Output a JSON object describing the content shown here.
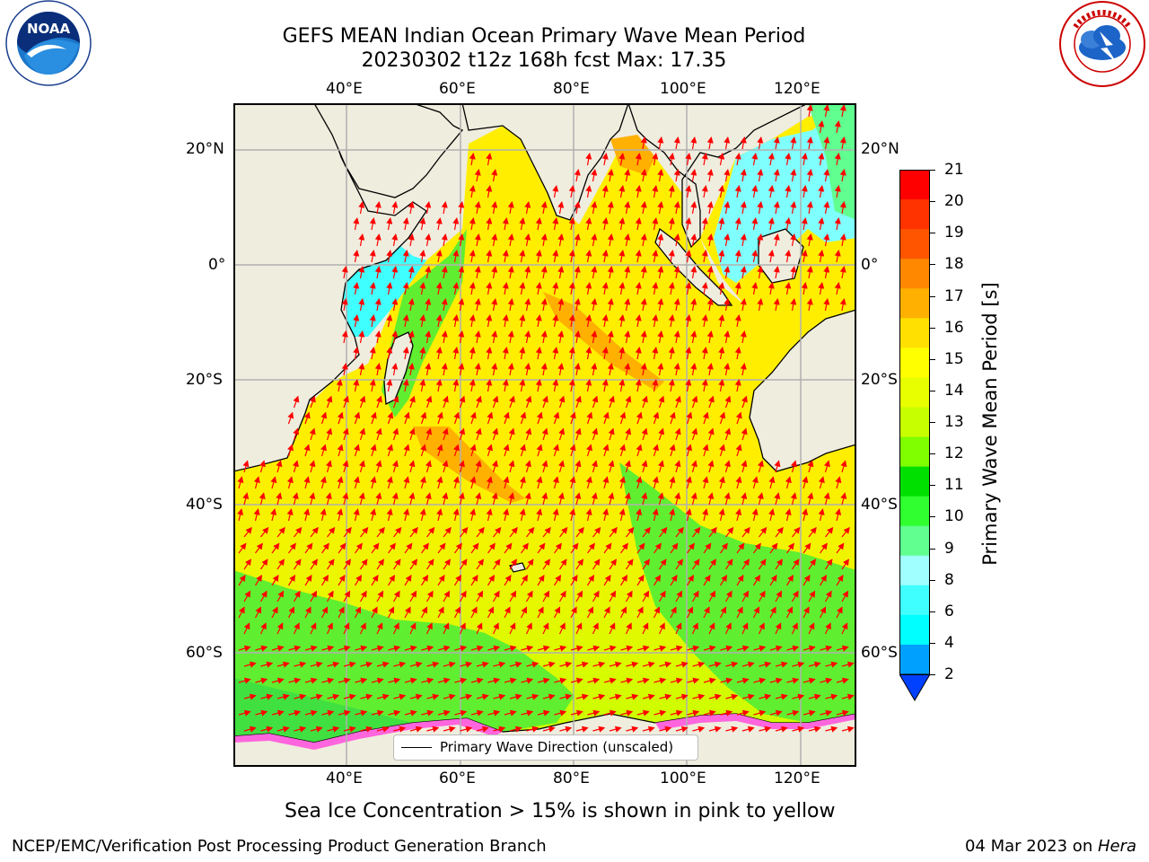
{
  "header": {
    "title_line1": "GEFS MEAN Indian Ocean Primary Wave Mean Period",
    "title_line2": "20230302 t12z 168h fcst   Max: 17.35"
  },
  "logos": {
    "left": {
      "name": "noaa-logo",
      "text": "NOAA",
      "ring_text": "NATIONAL OCEANIC AND ATMOSPHERIC ADMINISTRATION • U.S. DEPARTMENT OF COMMERCE"
    },
    "right": {
      "name": "nws-logo",
      "ring_text": "NATIONAL WEATHER SERVICE"
    }
  },
  "map": {
    "lon_labels": [
      "40°E",
      "60°E",
      "80°E",
      "100°E",
      "120°E"
    ],
    "lat_labels": [
      "20°N",
      "0°",
      "20°S",
      "40°S",
      "60°S"
    ],
    "legend": "Primary Wave Direction (unscaled)",
    "arrow_color": "#ff0000",
    "land_color": "#efedde"
  },
  "colorbar": {
    "label": "Primary Wave Mean Period [s]",
    "ticks": [
      "21",
      "20",
      "19",
      "18",
      "17",
      "16",
      "15",
      "14",
      "13",
      "12",
      "11",
      "10",
      "9",
      "8",
      "6",
      "4",
      "2"
    ],
    "colors": [
      "#ff0000",
      "#ff3300",
      "#ff5500",
      "#ff8800",
      "#ffb000",
      "#ffe000",
      "#ffff00",
      "#e8ff00",
      "#c8ff00",
      "#80ff00",
      "#00e000",
      "#30ff30",
      "#60ff90",
      "#a0ffff",
      "#40ffff",
      "#00ffff",
      "#00a0ff",
      "#0040ff"
    ]
  },
  "caption": "Sea Ice Concentration > 15% is shown in pink to yellow",
  "footer": {
    "left": "NCEP/EMC/Verification Post Processing Product Generation Branch",
    "right_date": "04 Mar 2023 on ",
    "right_host": "Hera"
  }
}
